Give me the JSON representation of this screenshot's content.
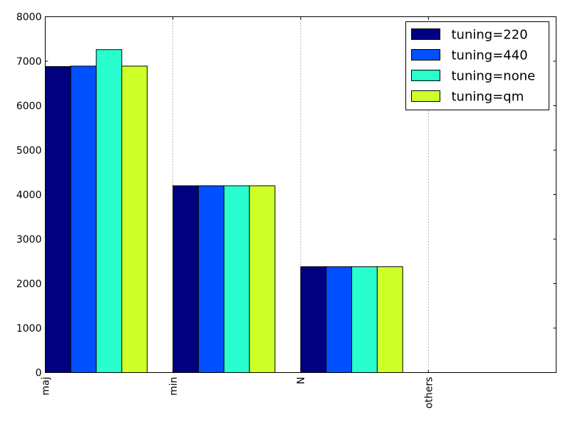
{
  "chart_data": {
    "type": "bar",
    "categories": [
      "maj",
      "min",
      "N",
      "others"
    ],
    "series": [
      {
        "name": "tuning=220",
        "color": "#000080",
        "values": [
          6880,
          4200,
          2380,
          0
        ]
      },
      {
        "name": "tuning=440",
        "color": "#0050ff",
        "values": [
          6890,
          4200,
          2380,
          0
        ]
      },
      {
        "name": "tuning=none",
        "color": "#29ffce",
        "values": [
          7260,
          4200,
          2380,
          0
        ]
      },
      {
        "name": "tuning=qm",
        "color": "#ceff29",
        "values": [
          6890,
          4200,
          2380,
          0
        ]
      }
    ],
    "yticks": [
      "0",
      "1000",
      "2000",
      "3000",
      "4000",
      "5000",
      "6000",
      "7000",
      "8000"
    ],
    "ylim": [
      0,
      8000
    ],
    "xlabel": "",
    "ylabel": "",
    "title": "",
    "grid": "vertical dotted lines at category positions",
    "legend_position": "top-right"
  }
}
